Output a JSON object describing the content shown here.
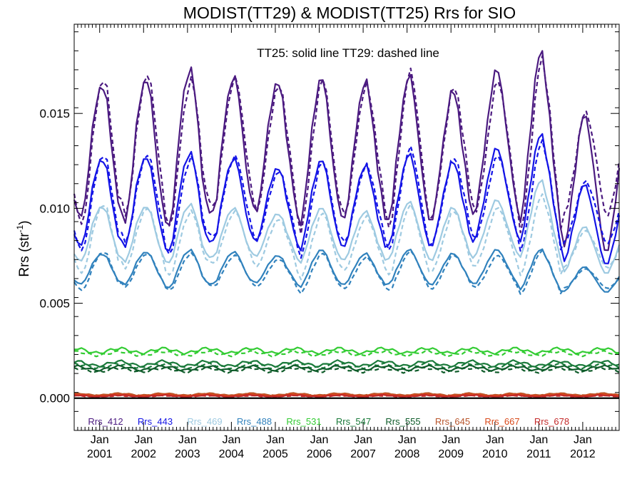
{
  "chart_data": {
    "type": "line",
    "title": "MODIST(TT29) & MODIST(TT25)  Rrs for SIO",
    "subtitle": "TT25: solid line   TT29: dashed line",
    "ylabel": "Rrs (str",
    "ylabel_sup": "-1",
    "ylabel_close": ")",
    "xlim": [
      2000.42,
      2012.83
    ],
    "ylim": [
      -0.0017,
      0.0197
    ],
    "yticks": [
      0.0,
      0.005,
      0.01,
      0.015
    ],
    "ytick_labels": [
      "0.000",
      "0.005",
      "0.010",
      "0.015"
    ],
    "xticks": [
      {
        "x": 2001.0,
        "month": "Jan",
        "year": "2001"
      },
      {
        "x": 2002.0,
        "month": "Jan",
        "year": "2002"
      },
      {
        "x": 2003.0,
        "month": "Jan",
        "year": "2003"
      },
      {
        "x": 2004.0,
        "month": "Jan",
        "year": "2004"
      },
      {
        "x": 2005.0,
        "month": "Jan",
        "year": "2005"
      },
      {
        "x": 2006.0,
        "month": "Jan",
        "year": "2006"
      },
      {
        "x": 2007.0,
        "month": "Jan",
        "year": "2007"
      },
      {
        "x": 2008.0,
        "month": "Jan",
        "year": "2008"
      },
      {
        "x": 2009.0,
        "month": "Jan",
        "year": "2009"
      },
      {
        "x": 2010.0,
        "month": "Jan",
        "year": "2010"
      },
      {
        "x": 2011.0,
        "month": "Jan",
        "year": "2011"
      },
      {
        "x": 2012.0,
        "month": "Jan",
        "year": "2012"
      }
    ],
    "zero_line": true,
    "legend_position": "bottom",
    "series": [
      {
        "name": "Rrs_412",
        "color": "#4b1a80",
        "solid_peaks": [
          0.0165,
          0.0168,
          0.0173,
          0.0169,
          0.0166,
          0.0168,
          0.0166,
          0.0169,
          0.0161,
          0.0172,
          0.0181,
          0.0148
        ],
        "solid_troughs": [
          0.0095,
          0.0093,
          0.009,
          0.0097,
          0.0099,
          0.0093,
          0.0095,
          0.0093,
          0.0095,
          0.0102,
          0.0092,
          0.0078
        ],
        "dash_peaks": [
          0.0168,
          0.017,
          0.0167,
          0.0168,
          0.0164,
          0.0167,
          0.0164,
          0.0171,
          0.0163,
          0.0166,
          0.0177,
          0.015
        ],
        "dash_troughs": [
          0.0092,
          0.0098,
          0.0091,
          0.0101,
          0.01,
          0.009,
          0.0098,
          0.009,
          0.0098,
          0.0101,
          0.0088,
          0.0097
        ]
      },
      {
        "name": "Rrs_443",
        "color": "#1414e6",
        "solid_peaks": [
          0.0126,
          0.0127,
          0.0129,
          0.0126,
          0.0121,
          0.0125,
          0.0122,
          0.0128,
          0.0124,
          0.0131,
          0.0138,
          0.0112
        ],
        "solid_troughs": [
          0.008,
          0.008,
          0.0077,
          0.0082,
          0.0083,
          0.0079,
          0.008,
          0.008,
          0.0081,
          0.0087,
          0.0082,
          0.0071
        ],
        "dash_peaks": [
          0.0128,
          0.0128,
          0.0126,
          0.0127,
          0.0119,
          0.0124,
          0.0122,
          0.0131,
          0.0126,
          0.0127,
          0.0134,
          0.0114
        ],
        "dash_troughs": [
          0.0078,
          0.0083,
          0.0076,
          0.0085,
          0.0084,
          0.0076,
          0.0083,
          0.0078,
          0.0083,
          0.0086,
          0.0078,
          0.0082
        ]
      },
      {
        "name": "Rrs_469",
        "color": "#9ecae1",
        "solid_peaks": [
          0.0101,
          0.0101,
          0.0102,
          0.01,
          0.0097,
          0.01,
          0.0098,
          0.0103,
          0.01,
          0.0104,
          0.0114,
          0.009
        ],
        "solid_troughs": [
          0.0072,
          0.0072,
          0.0071,
          0.0074,
          0.0075,
          0.0072,
          0.0073,
          0.0073,
          0.0073,
          0.0077,
          0.0074,
          0.0066
        ],
        "dash_peaks": [
          0.0102,
          0.01,
          0.0098,
          0.0098,
          0.0094,
          0.0097,
          0.0095,
          0.0101,
          0.0098,
          0.01,
          0.0106,
          0.0088
        ],
        "dash_troughs": [
          0.0066,
          0.0069,
          0.0065,
          0.0071,
          0.007,
          0.0064,
          0.0068,
          0.0065,
          0.0068,
          0.0071,
          0.0065,
          0.0069
        ]
      },
      {
        "name": "Rrs_488",
        "color": "#3182bd",
        "solid_peaks": [
          0.0076,
          0.0077,
          0.0078,
          0.0077,
          0.0075,
          0.0078,
          0.0076,
          0.0078,
          0.0076,
          0.0078,
          0.0078,
          0.0069
        ],
        "solid_troughs": [
          0.006,
          0.006,
          0.0058,
          0.006,
          0.0061,
          0.0059,
          0.006,
          0.006,
          0.006,
          0.0061,
          0.0057,
          0.0056
        ],
        "dash_peaks": [
          0.0077,
          0.0076,
          0.0076,
          0.0075,
          0.0073,
          0.0076,
          0.0074,
          0.0077,
          0.0075,
          0.0075,
          0.0077,
          0.0068
        ],
        "dash_troughs": [
          0.0057,
          0.0059,
          0.0057,
          0.0059,
          0.0059,
          0.0056,
          0.0058,
          0.0057,
          0.0058,
          0.0059,
          0.0055,
          0.0058
        ]
      },
      {
        "name": "Rrs_531",
        "color": "#33cc33",
        "solid_mean": 0.0025,
        "solid_amp": 0.00012,
        "dash_mean": 0.00235,
        "dash_amp": 0.0001
      },
      {
        "name": "Rrs_547",
        "color": "#1a7a3a",
        "solid_mean": 0.00182,
        "solid_amp": 0.00012,
        "dash_mean": 0.0017,
        "dash_amp": 0.0001
      },
      {
        "name": "Rrs_555",
        "color": "#0f5c2a",
        "solid_mean": 0.00158,
        "solid_amp": 0.0001,
        "dash_mean": 0.00148,
        "dash_amp": 0.0001
      },
      {
        "name": "Rrs_645",
        "color": "#b8552b",
        "solid_mean": 0.0002,
        "solid_amp": 5e-05,
        "dash_mean": 0.00018,
        "dash_amp": 4e-05
      },
      {
        "name": "Rrs_667",
        "color": "#d94a1a",
        "solid_mean": 0.00016,
        "solid_amp": 4e-05,
        "dash_mean": 0.00014,
        "dash_amp": 4e-05
      },
      {
        "name": "Rrs_678",
        "color": "#c42a2a",
        "solid_mean": 0.00012,
        "solid_amp": 4e-05,
        "dash_mean": 0.0001,
        "dash_amp": 3e-05
      }
    ]
  }
}
